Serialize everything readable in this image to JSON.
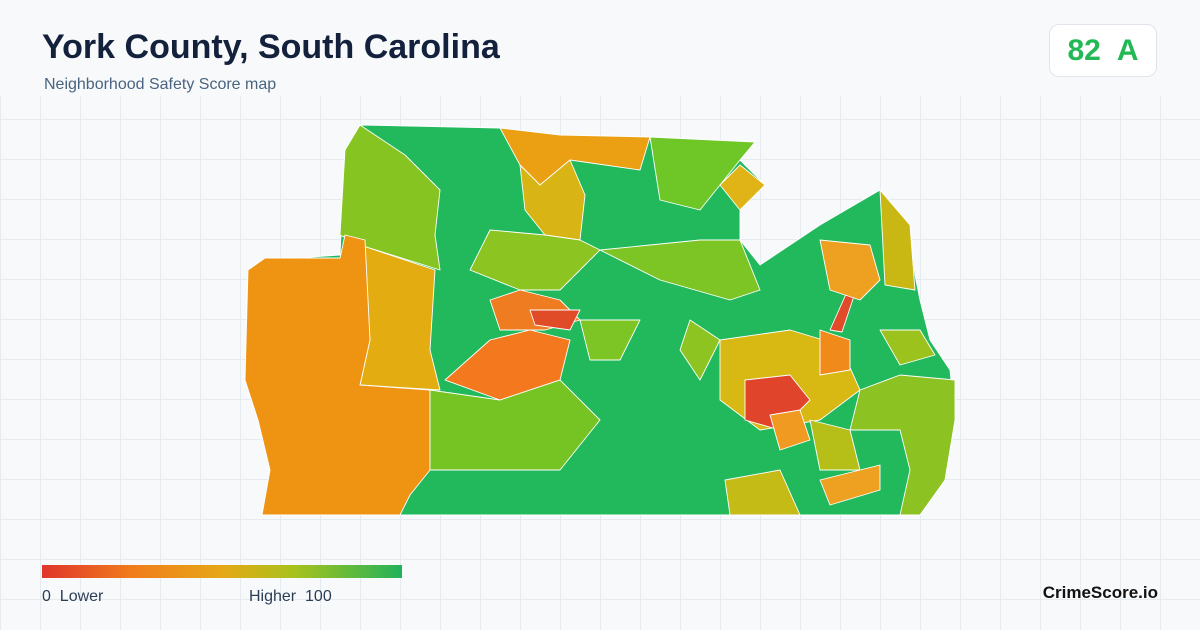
{
  "header": {
    "title": "York County, South Carolina",
    "subtitle": "Neighborhood Safety Score map"
  },
  "score": {
    "value": 82,
    "grade": "A"
  },
  "legend": {
    "min": 0,
    "min_label": "Lower",
    "max_label": "Higher",
    "max": 100
  },
  "brand": "CrimeScore.io"
}
